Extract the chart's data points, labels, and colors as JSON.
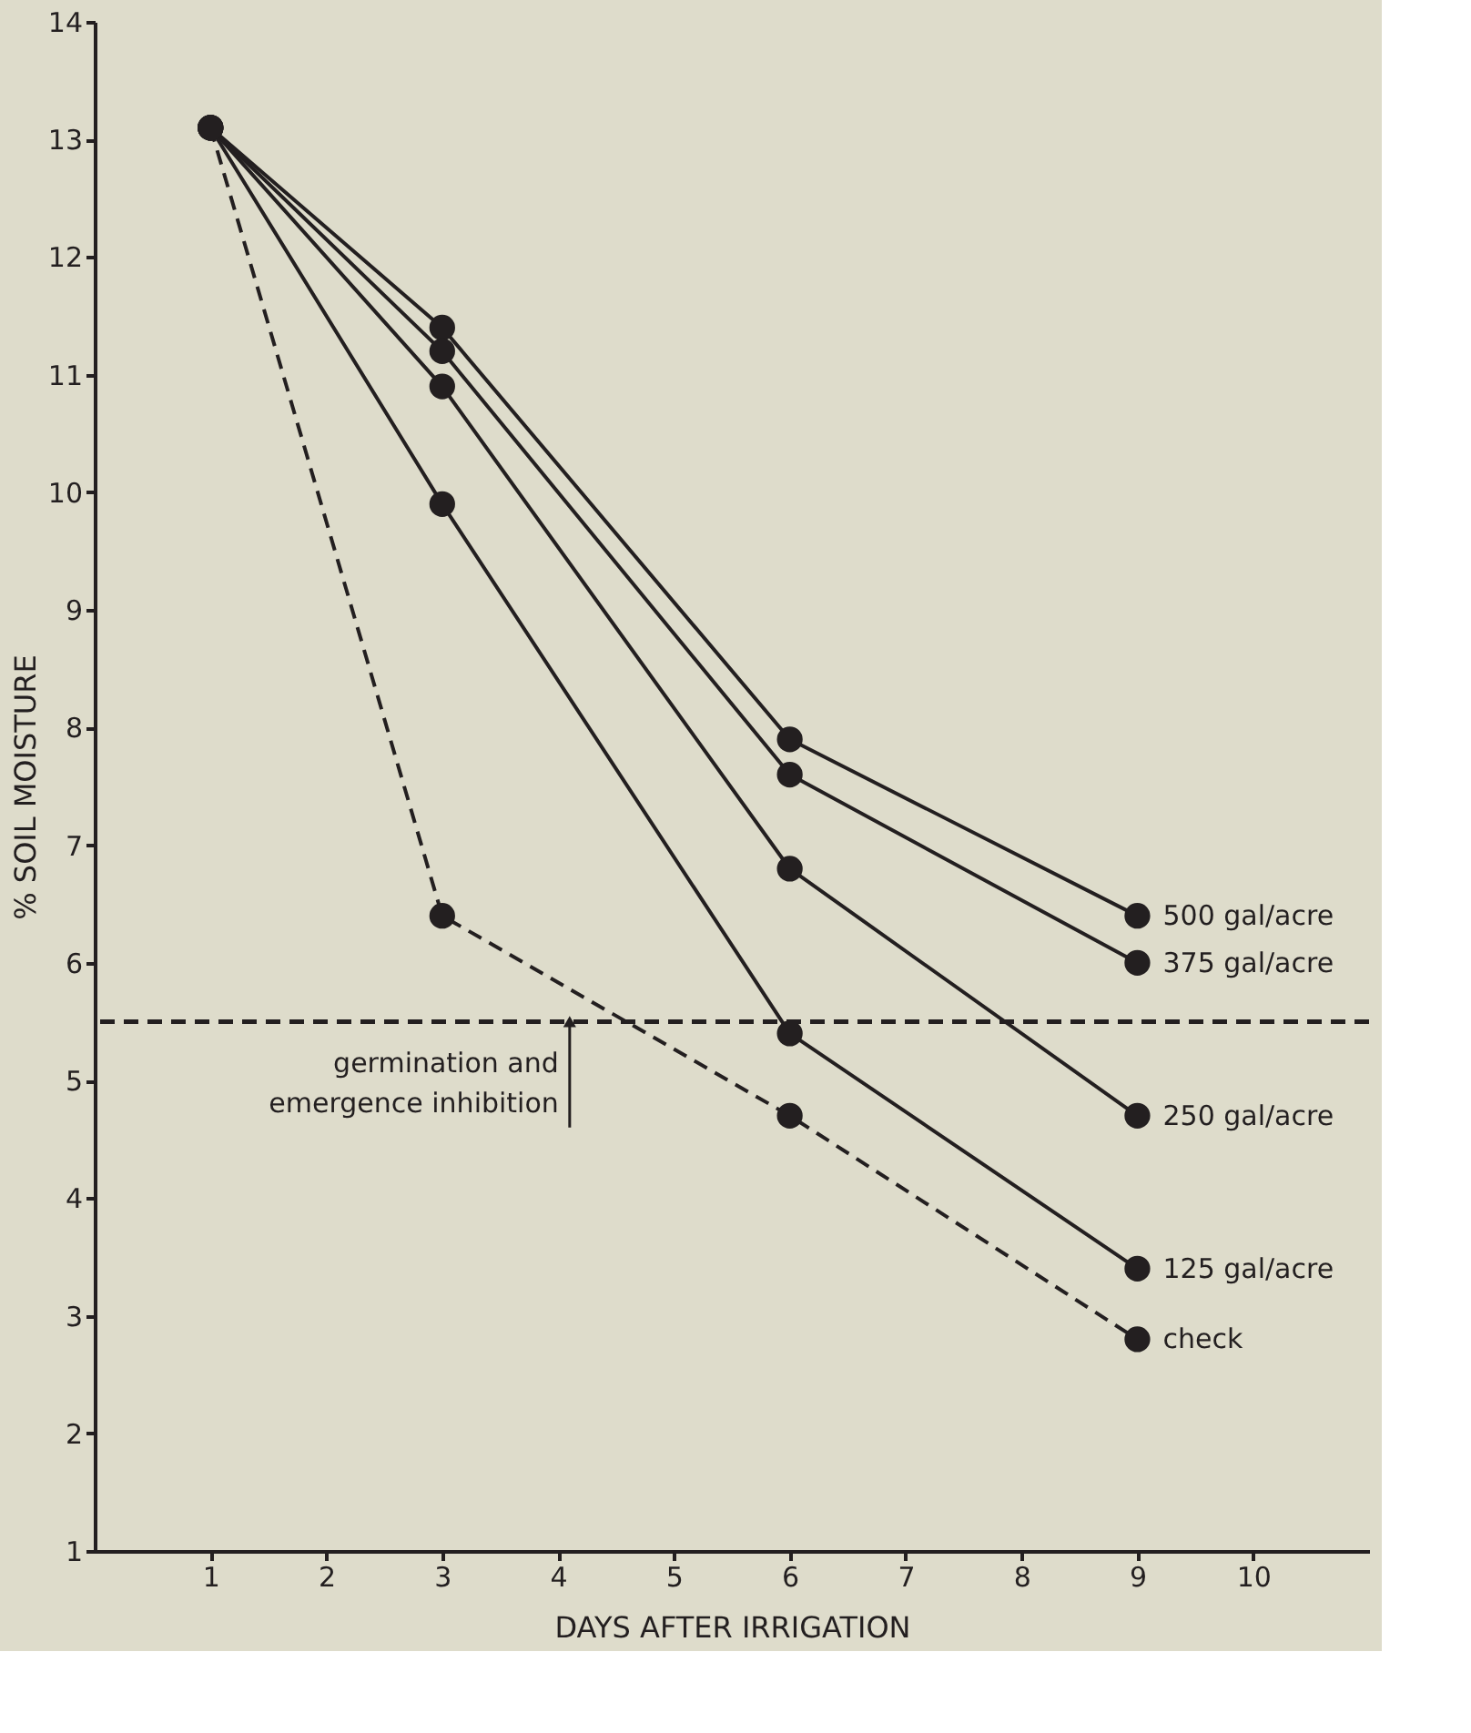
{
  "chart_data": {
    "type": "line",
    "xlabel": "DAYS AFTER IRRIGATION",
    "ylabel": "% SOIL MOISTURE",
    "x": [
      1,
      3,
      6,
      9
    ],
    "series": [
      {
        "name": "500 gal/acre",
        "color": "#231f20",
        "line_style": "solid",
        "values": [
          13.1,
          11.4,
          7.9,
          6.4
        ]
      },
      {
        "name": "375 gal/acre",
        "color": "#231f20",
        "line_style": "solid",
        "values": [
          13.1,
          11.2,
          7.6,
          6.0
        ]
      },
      {
        "name": "250 gal/acre",
        "color": "#231f20",
        "line_style": "solid",
        "values": [
          13.1,
          10.9,
          6.8,
          4.7
        ]
      },
      {
        "name": "125 gal/acre",
        "color": "#231f20",
        "line_style": "solid",
        "values": [
          13.1,
          9.9,
          5.4,
          3.4
        ]
      },
      {
        "name": "check",
        "color": "#231f20",
        "line_style": "dashed",
        "values": [
          13.1,
          6.4,
          4.7,
          2.8
        ]
      }
    ],
    "xlim": [
      0,
      11
    ],
    "xticks": [
      1,
      2,
      3,
      4,
      5,
      6,
      7,
      8,
      9,
      10
    ],
    "ylim": [
      1,
      14
    ],
    "yticks": [
      1,
      2,
      3,
      4,
      5,
      6,
      7,
      8,
      9,
      10,
      11,
      12,
      13,
      14
    ],
    "ref_lines": [
      {
        "axis": "y",
        "value": 5.5,
        "color": "#231f20",
        "line_style": "dashed"
      }
    ],
    "annotations": [
      {
        "text": "germination and\nemergence inhibition",
        "x": 4.1,
        "y": 5.5
      }
    ],
    "marker": "circle",
    "grid": false,
    "legend": false
  }
}
